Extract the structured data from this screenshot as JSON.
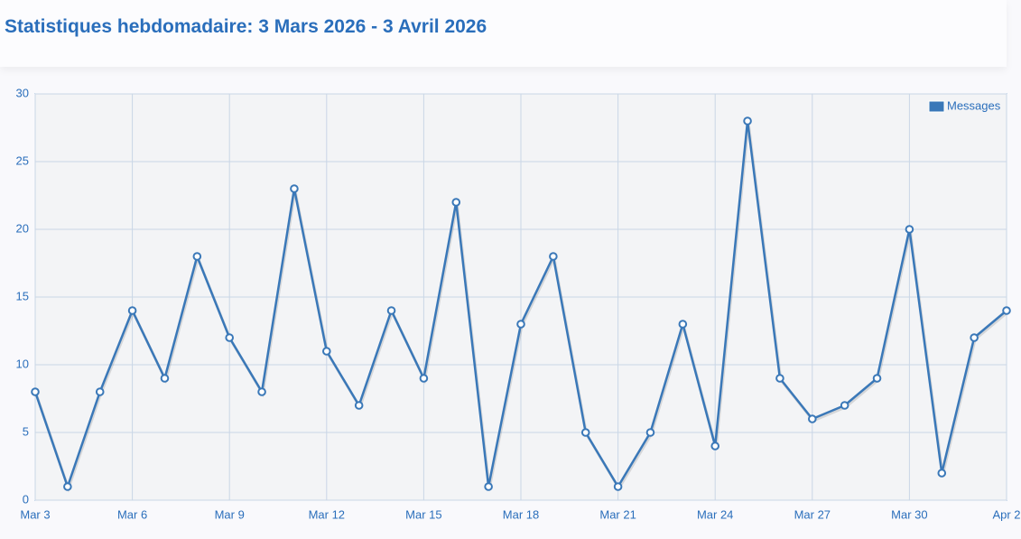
{
  "chart_data": {
    "type": "line",
    "title": "Statistiques hebdomadaire: 3 Mars 2026 - 3 Avril 2026",
    "categories": [
      "Mar 3",
      null,
      null,
      "Mar 6",
      null,
      null,
      "Mar 9",
      null,
      null,
      "Mar 12",
      null,
      null,
      "Mar 15",
      null,
      null,
      "Mar 18",
      null,
      null,
      "Mar 21",
      null,
      null,
      "Mar 24",
      null,
      null,
      "Mar 27",
      null,
      null,
      "Mar 30",
      null,
      null,
      "Apr 2"
    ],
    "series": [
      {
        "name": "Messages",
        "color": "#3a78b8",
        "values": [
          8,
          1,
          8,
          14,
          9,
          18,
          12,
          8,
          23,
          11,
          7,
          14,
          9,
          22,
          1,
          13,
          18,
          5,
          1,
          5,
          13,
          4,
          28,
          9,
          6,
          7,
          9,
          20,
          2,
          12,
          14
        ]
      }
    ],
    "ylim": [
      0,
      30
    ],
    "yticks": [
      0,
      5,
      10,
      15,
      20,
      25,
      30
    ],
    "grid": true,
    "legend": "top-right"
  }
}
